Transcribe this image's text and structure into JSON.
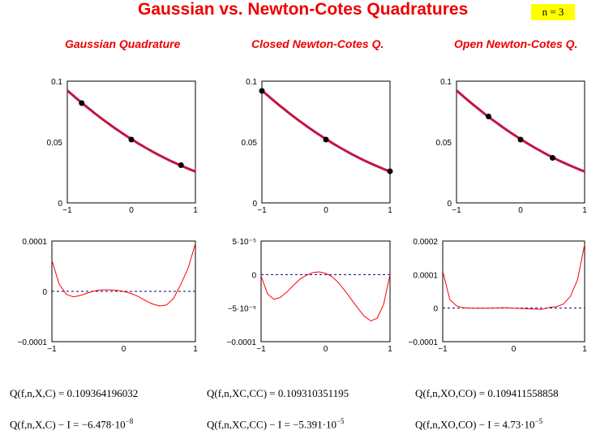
{
  "title": "Gaussian vs. Newton-Cotes Quadratures",
  "n_label": "n = 3",
  "columns": [
    {
      "heading": "Gaussian Quadrature",
      "q_expr": "Q(f,n,X,C)",
      "q_value": "0.109364196032",
      "err_expr": "Q(f,n,X,C) − I",
      "err_mant": "−6.478·10",
      "err_exp": "−8"
    },
    {
      "heading": "Closed Newton-Cotes Q.",
      "q_expr": "Q(f,n,XC,CC)",
      "q_value": "0.109310351195",
      "err_expr": "Q(f,n,XC,CC) − I",
      "err_mant": "−5.391·10",
      "err_exp": "−5"
    },
    {
      "heading": "Open Newton-Cotes Q.",
      "q_expr": "Q(f,n,XO,CO)",
      "q_value": "0.109411558858",
      "err_expr": "Q(f,n,XO,CO) − I",
      "err_mant": "4.73·10",
      "err_exp": "−5"
    }
  ],
  "colors": {
    "curve_red": "#ff0000",
    "curve_blue": "#2244ff",
    "node": "#000000",
    "zero_line": "#000080"
  },
  "chart_data": [
    {
      "type": "line",
      "panel": "gaussian-function",
      "xlim": [
        -1,
        1
      ],
      "ylim": [
        0,
        0.1
      ],
      "x_ticks": [
        "−1",
        "0",
        "1"
      ],
      "y_ticks": [
        "0",
        "0.05",
        "0.1"
      ],
      "series": [],
      "points": [
        [
          -0.775,
          0.082
        ],
        [
          0,
          0.052
        ],
        [
          0.775,
          0.031
        ]
      ]
    },
    {
      "type": "line",
      "panel": "closed-function",
      "xlim": [
        -1,
        1
      ],
      "ylim": [
        0,
        0.1
      ],
      "x_ticks": [
        "−1",
        "0",
        "1"
      ],
      "y_ticks": [
        "0",
        "0.05",
        "0.1"
      ],
      "series": [],
      "points": [
        [
          -1,
          0.092
        ],
        [
          0,
          0.052
        ],
        [
          1,
          0.026
        ]
      ]
    },
    {
      "type": "line",
      "panel": "open-function",
      "xlim": [
        -1,
        1
      ],
      "ylim": [
        0,
        0.1
      ],
      "x_ticks": [
        "−1",
        "0",
        "1"
      ],
      "y_ticks": [
        "0",
        "0.05",
        "0.1"
      ],
      "series": [],
      "points": [
        [
          -0.5,
          0.071
        ],
        [
          0,
          0.052
        ],
        [
          0.5,
          0.037
        ]
      ]
    },
    {
      "type": "line",
      "panel": "gaussian-error",
      "xlim": [
        -1,
        1
      ],
      "ylim": [
        -0.0001,
        0.0001
      ],
      "x_ticks": [
        "−1",
        "0",
        "1"
      ],
      "y_ticks": [
        "−0.0001",
        "0",
        "0.0001"
      ],
      "x": [
        -1,
        -0.9,
        -0.8,
        -0.7,
        -0.6,
        -0.5,
        -0.4,
        -0.3,
        -0.2,
        -0.1,
        0,
        0.1,
        0.2,
        0.3,
        0.4,
        0.5,
        0.6,
        0.7,
        0.8,
        0.9,
        1
      ],
      "y": [
        6.2e-05,
        1.5e-05,
        -6e-06,
        -1.1e-05,
        -8e-06,
        -3e-06,
        1e-06,
        3e-06,
        3e-06,
        2e-06,
        0,
        -4e-06,
        -1e-05,
        -1.8e-05,
        -2.5e-05,
        -2.9e-05,
        -2.7e-05,
        -1.3e-05,
        1.5e-05,
        4.7e-05,
        9.5e-05
      ]
    },
    {
      "type": "line",
      "panel": "closed-error",
      "xlim": [
        -1,
        1
      ],
      "ylim": [
        -0.0001,
        5e-05
      ],
      "x_ticks": [
        "−1",
        "0",
        "1"
      ],
      "y_ticks": [
        "−0.0001",
        "−5·10⁻⁵",
        "0",
        "5·10⁻⁵"
      ],
      "x": [
        -1,
        -0.9,
        -0.8,
        -0.7,
        -0.6,
        -0.5,
        -0.4,
        -0.3,
        -0.2,
        -0.1,
        0,
        0.1,
        0.2,
        0.3,
        0.4,
        0.5,
        0.6,
        0.7,
        0.8,
        0.9,
        1
      ],
      "y": [
        -2e-06,
        -2.9e-05,
        -3.7e-05,
        -3.4e-05,
        -2.6e-05,
        -1.6e-05,
        -7e-06,
        -1e-06,
        3e-06,
        4e-06,
        2e-06,
        -3e-06,
        -1.2e-05,
        -2.4e-05,
        -3.7e-05,
        -5e-05,
        -6.2e-05,
        -6.9e-05,
        -6.5e-05,
        -4.5e-05,
        0
      ]
    },
    {
      "type": "line",
      "panel": "open-error",
      "xlim": [
        -1,
        1
      ],
      "ylim": [
        -0.0001,
        0.0002
      ],
      "x_ticks": [
        "−1",
        "0",
        "1"
      ],
      "y_ticks": [
        "−0.0001",
        "0",
        "0.0001",
        "0.0002"
      ],
      "x": [
        -1,
        -0.9,
        -0.8,
        -0.7,
        -0.6,
        -0.5,
        -0.4,
        -0.3,
        -0.2,
        -0.1,
        0,
        0.1,
        0.2,
        0.3,
        0.4,
        0.5,
        0.6,
        0.7,
        0.8,
        0.9,
        1
      ],
      "y": [
        0.00011,
        2.5e-05,
        6e-06,
        1e-06,
        0,
        0,
        0,
        0,
        1e-06,
        1e-06,
        0,
        -1e-06,
        -2e-06,
        -3e-06,
        -4e-06,
        2e-06,
        4e-06,
        1.2e-05,
        3.5e-05,
        8.5e-05,
        0.00019
      ]
    }
  ]
}
